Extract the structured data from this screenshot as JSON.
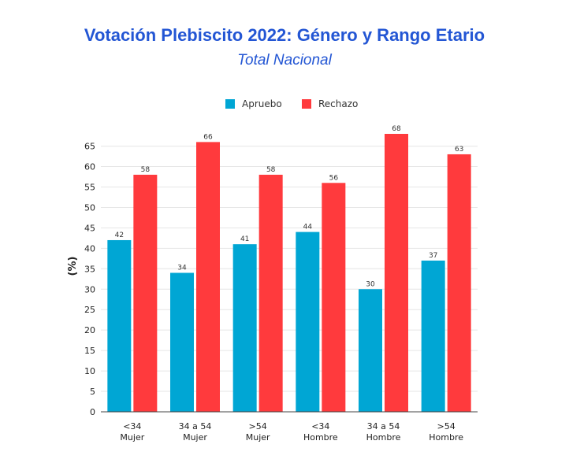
{
  "chart_data": {
    "type": "bar",
    "title": "Votación Plebiscito 2022: Género y Rango Etario",
    "subtitle": "Total Nacional",
    "xlabel": "",
    "ylabel": "(%)",
    "ylim": [
      0,
      68
    ],
    "yticks": [
      0,
      5,
      10,
      15,
      20,
      25,
      30,
      35,
      40,
      45,
      50,
      55,
      60,
      65
    ],
    "grid": true,
    "legend_position": "top-center",
    "categories": [
      [
        "<34",
        "Mujer"
      ],
      [
        "34 a 54",
        "Mujer"
      ],
      [
        ">54",
        "Mujer"
      ],
      [
        "<34",
        "Hombre"
      ],
      [
        "34 a 54",
        "Hombre"
      ],
      [
        ">54",
        "Hombre"
      ]
    ],
    "series": [
      {
        "name": "Apruebo",
        "color": "#00a6d4",
        "values": [
          42,
          34,
          41,
          44,
          30,
          37
        ]
      },
      {
        "name": "Rechazo",
        "color": "#ff3a3d",
        "values": [
          58,
          66,
          58,
          56,
          68,
          63
        ]
      }
    ],
    "title_color": "#2356d4"
  }
}
